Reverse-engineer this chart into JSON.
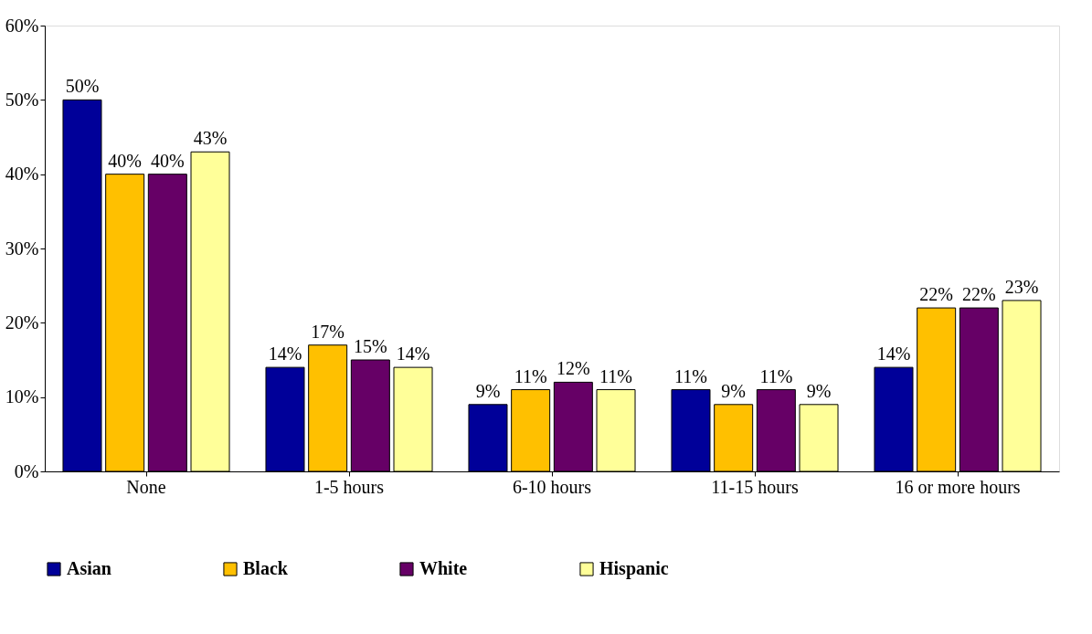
{
  "chart_data": {
    "type": "bar",
    "categories": [
      "None",
      "1-5 hours",
      "6-10 hours",
      "11-15 hours",
      "16 or more hours"
    ],
    "series": [
      {
        "name": "Asian",
        "color": "#000099",
        "values": [
          50,
          14,
          9,
          11,
          14
        ],
        "value_labels": [
          "50%",
          "14%",
          "9%",
          "11%",
          "14%"
        ]
      },
      {
        "name": "Black",
        "color": "#ffc000",
        "values": [
          40,
          17,
          11,
          9,
          22
        ],
        "value_labels": [
          "40%",
          "17%",
          "11%",
          "9%",
          "22%"
        ]
      },
      {
        "name": "White",
        "color": "#660066",
        "values": [
          40,
          15,
          12,
          11,
          22
        ],
        "value_labels": [
          "40%",
          "15%",
          "12%",
          "11%",
          "22%"
        ]
      },
      {
        "name": "Hispanic",
        "color": "#ffff99",
        "values": [
          43,
          14,
          11,
          9,
          23
        ],
        "value_labels": [
          "43%",
          "14%",
          "11%",
          "9%",
          "23%"
        ]
      }
    ],
    "ylim": [
      0,
      60
    ],
    "yticks": [
      {
        "value": 0,
        "label": "0%"
      },
      {
        "value": 10,
        "label": "10%"
      },
      {
        "value": 20,
        "label": "20%"
      },
      {
        "value": 30,
        "label": "30%"
      },
      {
        "value": 40,
        "label": "40%"
      },
      {
        "value": 50,
        "label": "50%"
      },
      {
        "value": 60,
        "label": "60%"
      }
    ],
    "grid": false,
    "legend": "bottom"
  }
}
